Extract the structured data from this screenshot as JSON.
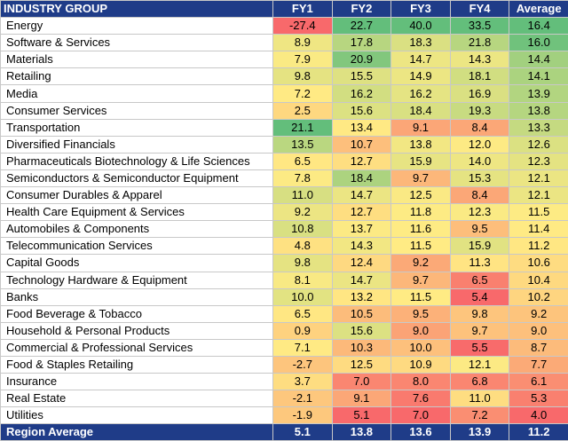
{
  "chart_data": {
    "type": "heatmap",
    "header": [
      "INDUSTRY GROUP",
      "FY1",
      "FY2",
      "FY3",
      "FY4",
      "Average"
    ],
    "rows": [
      {
        "name": "Energy",
        "values": [
          -27.4,
          22.7,
          40.0,
          33.5,
          16.4
        ]
      },
      {
        "name": "Software & Services",
        "values": [
          8.9,
          17.8,
          18.3,
          21.8,
          16.0
        ]
      },
      {
        "name": "Materials",
        "values": [
          7.9,
          20.9,
          14.7,
          14.3,
          14.4
        ]
      },
      {
        "name": "Retailing",
        "values": [
          9.8,
          15.5,
          14.9,
          18.1,
          14.1
        ]
      },
      {
        "name": "Media",
        "values": [
          7.2,
          16.2,
          16.2,
          16.9,
          13.9
        ]
      },
      {
        "name": "Consumer Services",
        "values": [
          2.5,
          15.6,
          18.4,
          19.3,
          13.8
        ]
      },
      {
        "name": "Transportation",
        "values": [
          21.1,
          13.4,
          9.1,
          8.4,
          13.3
        ]
      },
      {
        "name": "Diversified Financials",
        "values": [
          13.5,
          10.7,
          13.8,
          12.0,
          12.6
        ]
      },
      {
        "name": "Pharmaceuticals Biotechnology & Life Sciences",
        "values": [
          6.5,
          12.7,
          15.9,
          14.0,
          12.3
        ]
      },
      {
        "name": "Semiconductors & Semiconductor Equipment",
        "values": [
          7.8,
          18.4,
          9.7,
          15.3,
          12.1
        ]
      },
      {
        "name": "Consumer Durables & Apparel",
        "values": [
          11.0,
          14.7,
          12.5,
          8.4,
          12.1
        ]
      },
      {
        "name": "Health Care Equipment & Services",
        "values": [
          9.2,
          12.7,
          11.8,
          12.3,
          11.5
        ]
      },
      {
        "name": "Automobiles & Components",
        "values": [
          10.8,
          13.7,
          11.6,
          9.5,
          11.4
        ]
      },
      {
        "name": "Telecommunication Services",
        "values": [
          4.8,
          14.3,
          11.5,
          15.9,
          11.2
        ]
      },
      {
        "name": "Capital Goods",
        "values": [
          9.8,
          12.4,
          9.2,
          11.3,
          10.6
        ]
      },
      {
        "name": "Technology Hardware & Equipment",
        "values": [
          8.1,
          14.7,
          9.7,
          6.5,
          10.4
        ]
      },
      {
        "name": "Banks",
        "values": [
          10.0,
          13.2,
          11.5,
          5.4,
          10.2
        ]
      },
      {
        "name": "Food Beverage & Tobacco",
        "values": [
          6.5,
          10.5,
          9.5,
          9.8,
          9.2
        ]
      },
      {
        "name": "Household & Personal Products",
        "values": [
          0.9,
          15.6,
          9.0,
          9.7,
          9.0
        ]
      },
      {
        "name": "Commercial & Professional Services",
        "values": [
          7.1,
          10.3,
          10.0,
          5.5,
          8.7
        ]
      },
      {
        "name": "Food & Staples Retailing",
        "values": [
          -2.7,
          12.5,
          10.9,
          12.1,
          7.7
        ]
      },
      {
        "name": "Insurance",
        "values": [
          3.7,
          7.0,
          8.0,
          6.8,
          6.1
        ]
      },
      {
        "name": "Real Estate",
        "values": [
          -2.1,
          9.1,
          7.6,
          11.0,
          5.3
        ]
      },
      {
        "name": "Utilities",
        "values": [
          -1.9,
          5.1,
          7.0,
          7.2,
          4.0
        ]
      }
    ],
    "footer": {
      "name": "Region Average",
      "values": [
        5.1,
        13.8,
        13.6,
        13.9,
        11.2
      ]
    },
    "colors": {
      "header_bg": "#1f3c88",
      "header_text": "#ffffff",
      "low": "#f8696b",
      "mid": "#ffeb84",
      "high": "#63be7b"
    }
  }
}
